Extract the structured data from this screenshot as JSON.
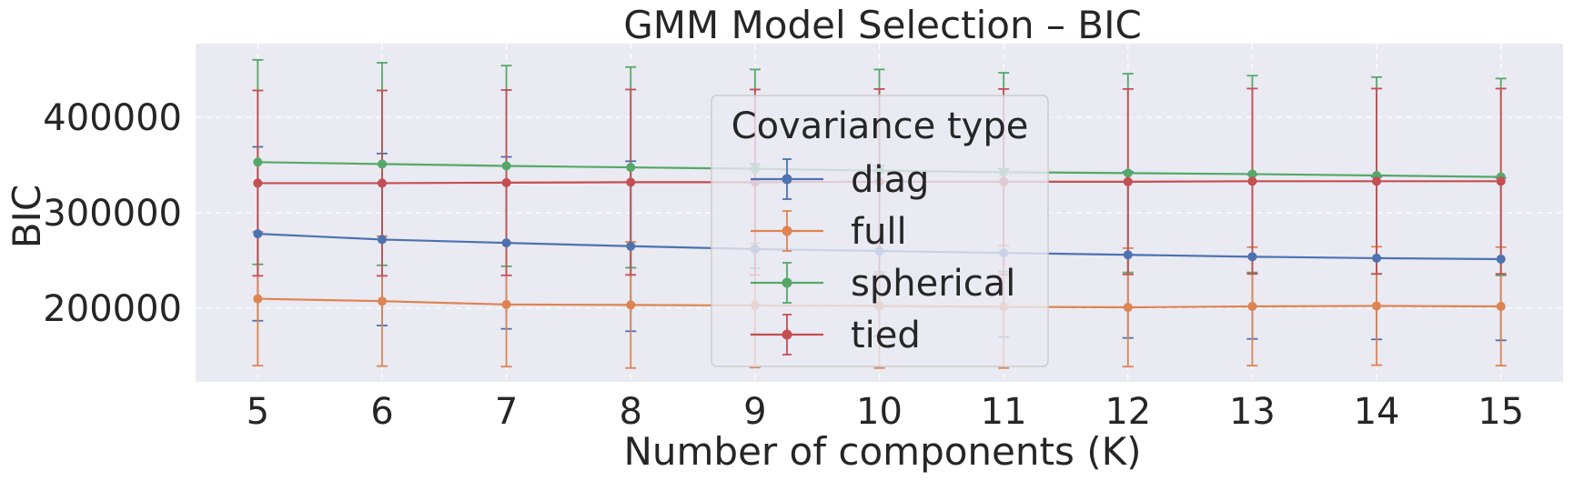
{
  "chart_data": {
    "type": "line",
    "title": "GMM Model Selection – BIC",
    "xlabel": "Number of components (K)",
    "ylabel": "BIC",
    "x": [
      5,
      6,
      7,
      8,
      9,
      10,
      11,
      12,
      13,
      14,
      15
    ],
    "xlim": [
      4.5,
      15.5
    ],
    "ylim": [
      123000,
      477000
    ],
    "yticks": [
      200000,
      300000,
      400000
    ],
    "grid": true,
    "background": "#EAEAF2",
    "legend": {
      "title": "Covariance type",
      "placement": "center"
    },
    "series": [
      {
        "name": "diag",
        "color": "#4C72B0",
        "values": [
          278000,
          272000,
          268500,
          265000,
          262000,
          260000,
          258000,
          256000,
          254000,
          252500,
          251500
        ],
        "errors": [
          91000,
          90000,
          90000,
          89000,
          89000,
          89000,
          88000,
          87000,
          86000,
          85000,
          85000
        ]
      },
      {
        "name": "full",
        "color": "#DD8452",
        "values": [
          210000,
          207500,
          204000,
          203500,
          203000,
          202500,
          201500,
          201000,
          202000,
          202500,
          202000
        ],
        "errors": [
          70000,
          68000,
          65000,
          66000,
          65000,
          65000,
          64000,
          62000,
          62000,
          62000,
          62000
        ]
      },
      {
        "name": "spherical",
        "color": "#55A868",
        "values": [
          353000,
          351000,
          349000,
          347500,
          346000,
          344000,
          342500,
          341500,
          340500,
          339000,
          337500
        ],
        "errors": [
          107000,
          106000,
          105000,
          105000,
          104000,
          106000,
          104000,
          104000,
          103000,
          103000,
          103000
        ]
      },
      {
        "name": "tied",
        "color": "#C44E52",
        "values": [
          331000,
          331000,
          331500,
          332000,
          332000,
          332500,
          332500,
          332500,
          333000,
          333000,
          333000
        ],
        "errors": [
          97000,
          97000,
          97000,
          97000,
          97000,
          97000,
          97000,
          97000,
          97000,
          97000,
          97000
        ]
      }
    ]
  }
}
